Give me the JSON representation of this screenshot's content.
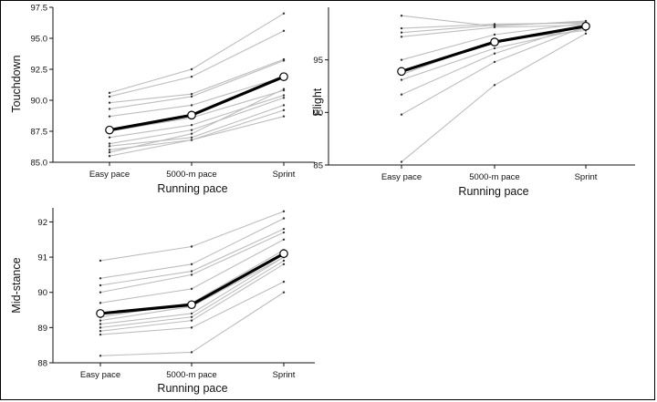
{
  "chart_data": [
    {
      "id": "touchdown",
      "type": "line",
      "title": "",
      "xlabel": "Running pace",
      "ylabel": "Touchdown",
      "categories": [
        "Easy pace",
        "5000-m pace",
        "Sprint"
      ],
      "ylim": [
        85.0,
        97.5
      ],
      "yticks": [
        "85.0",
        "87.5",
        "90.0",
        "92.5",
        "95.0",
        "97.5"
      ],
      "grid": false,
      "mean": {
        "values": [
          87.6,
          88.8,
          91.9
        ]
      },
      "individuals": [
        [
          90.6,
          92.5,
          97.0
        ],
        [
          90.3,
          91.9,
          95.6
        ],
        [
          89.8,
          90.5,
          93.3
        ],
        [
          89.3,
          90.3,
          93.2
        ],
        [
          88.7,
          89.6,
          91.9
        ],
        [
          87.5,
          88.6,
          90.8
        ],
        [
          87.0,
          88.0,
          90.4
        ],
        [
          86.5,
          87.6,
          90.2
        ],
        [
          86.3,
          87.0,
          89.6
        ],
        [
          86.0,
          86.8,
          89.2
        ],
        [
          85.8,
          87.3,
          90.9
        ],
        [
          85.5,
          86.8,
          88.7
        ]
      ]
    },
    {
      "id": "flight",
      "type": "line",
      "title": "",
      "xlabel": "Running pace",
      "ylabel": "Flight",
      "categories": [
        "Easy pace",
        "5000-m pace",
        "Sprint"
      ],
      "ylim": [
        85,
        100
      ],
      "yticks": [
        "85",
        "90",
        "95"
      ],
      "grid": false,
      "mean": {
        "values": [
          93.9,
          96.7,
          98.2
        ]
      },
      "individuals": [
        [
          99.2,
          98.2,
          98.7
        ],
        [
          98.0,
          98.4,
          98.5
        ],
        [
          97.6,
          98.3,
          98.6
        ],
        [
          97.2,
          98.1,
          98.3
        ],
        [
          95.0,
          97.4,
          98.5
        ],
        [
          93.6,
          96.8,
          97.8
        ],
        [
          93.1,
          96.1,
          98.0
        ],
        [
          91.7,
          95.6,
          98.4
        ],
        [
          89.8,
          94.8,
          98.2
        ],
        [
          85.3,
          92.6,
          97.5
        ]
      ]
    },
    {
      "id": "mid-stance",
      "type": "line",
      "title": "",
      "xlabel": "Running pace",
      "ylabel": "Mid-stance",
      "categories": [
        "Easy pace",
        "5000-m pace",
        "Sprint"
      ],
      "ylim": [
        88,
        92.4
      ],
      "yticks": [
        "88",
        "89",
        "90",
        "91",
        "92"
      ],
      "grid": false,
      "mean": {
        "values": [
          89.4,
          89.65,
          91.1
        ]
      },
      "individuals": [
        [
          90.9,
          91.3,
          92.3
        ],
        [
          90.4,
          90.8,
          92.1
        ],
        [
          90.2,
          90.6,
          91.8
        ],
        [
          90.0,
          90.5,
          91.7
        ],
        [
          89.7,
          90.1,
          91.5
        ],
        [
          89.3,
          89.7,
          91.2
        ],
        [
          89.2,
          89.6,
          91.0
        ],
        [
          89.1,
          89.4,
          91.0
        ],
        [
          89.0,
          89.3,
          90.9
        ],
        [
          88.9,
          89.2,
          90.8
        ],
        [
          88.8,
          89.0,
          90.3
        ],
        [
          88.2,
          88.3,
          90.0
        ]
      ]
    }
  ]
}
